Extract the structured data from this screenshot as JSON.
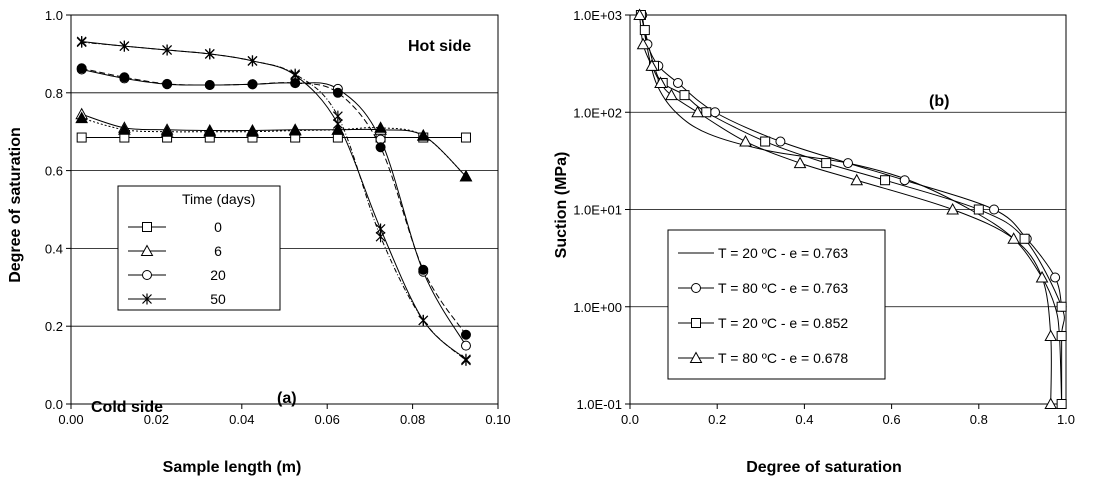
{
  "chart_data": [
    {
      "type": "line",
      "panel_label": "(a)",
      "xlabel": "Sample length (m)",
      "ylabel": "Degree of saturation",
      "xlim": [
        0,
        0.1
      ],
      "ylim": [
        0,
        1.0
      ],
      "x_ticks": [
        "0.00",
        "0.02",
        "0.04",
        "0.06",
        "0.08",
        "0.10"
      ],
      "y_ticks": [
        "0.0",
        "0.2",
        "0.4",
        "0.6",
        "0.8",
        "1.0"
      ],
      "grid": "horizontal",
      "annotations": [
        "Hot side",
        "Cold side"
      ],
      "legend_title": "Time (days)",
      "legend_position": "center-left",
      "series": [
        {
          "name": "0",
          "marker": "square",
          "x": [
            0.0025,
            0.0125,
            0.0225,
            0.0325,
            0.0425,
            0.0525,
            0.0625,
            0.0725,
            0.0825,
            0.0925
          ],
          "values": [
            0.685,
            0.685,
            0.685,
            0.685,
            0.685,
            0.685,
            0.685,
            0.685,
            0.685,
            0.685
          ]
        },
        {
          "name": "6",
          "marker": "triangle",
          "x": [
            0.0025,
            0.0125,
            0.0225,
            0.0325,
            0.0425,
            0.0525,
            0.0625,
            0.0725,
            0.0825,
            0.0925
          ],
          "values": [
            0.745,
            0.71,
            0.705,
            0.703,
            0.703,
            0.705,
            0.705,
            0.705,
            0.69,
            0.585
          ]
        },
        {
          "name": "20",
          "marker": "circle",
          "x": [
            0.0025,
            0.0125,
            0.0225,
            0.0325,
            0.0425,
            0.0525,
            0.0625,
            0.0725,
            0.0825,
            0.0925
          ],
          "values": [
            0.86,
            0.837,
            0.822,
            0.82,
            0.822,
            0.825,
            0.81,
            0.68,
            0.34,
            0.15
          ]
        },
        {
          "name": "50",
          "marker": "star",
          "x": [
            0.0025,
            0.0125,
            0.0225,
            0.0325,
            0.0425,
            0.0525,
            0.0625,
            0.0725,
            0.0825,
            0.0925
          ],
          "values": [
            0.932,
            0.92,
            0.91,
            0.9,
            0.882,
            0.845,
            0.72,
            0.45,
            0.215,
            0.115
          ]
        }
      ],
      "comparison_series": [
        {
          "marker": "filled-triangle",
          "x": [
            0.0025,
            0.0125,
            0.0225,
            0.0325,
            0.0425,
            0.0525,
            0.0625,
            0.0725,
            0.0825,
            0.0925
          ],
          "values": [
            0.735,
            0.705,
            0.7,
            0.7,
            0.7,
            0.703,
            0.705,
            0.71,
            0.69,
            0.585
          ]
        },
        {
          "marker": "filled-circle",
          "x": [
            0.0025,
            0.0125,
            0.0225,
            0.0325,
            0.0425,
            0.0525,
            0.0625,
            0.0725,
            0.0825,
            0.0925
          ],
          "values": [
            0.863,
            0.84,
            0.823,
            0.82,
            0.822,
            0.825,
            0.8,
            0.66,
            0.345,
            0.178
          ]
        },
        {
          "marker": "star",
          "x": [
            0.0025,
            0.0125,
            0.0225,
            0.0325,
            0.0425,
            0.0525,
            0.0625,
            0.0725,
            0.0825,
            0.0925
          ],
          "values": [
            0.93,
            0.92,
            0.91,
            0.9,
            0.882,
            0.848,
            0.74,
            0.43,
            0.215,
            0.112
          ]
        }
      ]
    },
    {
      "type": "line",
      "panel_label": "(b)",
      "xlabel": "Degree of saturation",
      "ylabel": "Suction (MPa)",
      "xlim": [
        0,
        1.0
      ],
      "ylim": [
        0.1,
        1000
      ],
      "yscale": "log",
      "x_ticks": [
        "0.0",
        "0.2",
        "0.4",
        "0.6",
        "0.8",
        "1.0"
      ],
      "y_ticks": [
        "1.0E-01",
        "1.0E+00",
        "1.0E+01",
        "1.0E+02",
        "1.0E+03"
      ],
      "grid": "horizontal",
      "legend_position": "bottom-left",
      "series": [
        {
          "name": "T = 20 ºC - e = 0.763",
          "marker": "none",
          "x": [
            0.027,
            0.038,
            0.06,
            0.105,
            0.18,
            0.32,
            0.5,
            0.64,
            0.78,
            0.88,
            0.945,
            0.975,
            0.985,
            0.99
          ],
          "values": [
            1000,
            500,
            200,
            100,
            60,
            40,
            30,
            20,
            10,
            5,
            2,
            1,
            0.5,
            0.1
          ]
        },
        {
          "name": "T = 80 ºC - e = 0.763",
          "marker": "circle",
          "x": [
            0.028,
            0.04,
            0.065,
            0.11,
            0.195,
            0.345,
            0.5,
            0.63,
            0.835,
            0.91,
            0.975,
            0.99
          ],
          "values": [
            1000,
            500,
            300,
            200,
            100,
            50,
            30,
            20,
            10,
            5,
            2,
            1
          ]
        },
        {
          "name": "T = 20 ºC - e = 0.852",
          "marker": "square",
          "x": [
            0.025,
            0.034,
            0.055,
            0.075,
            0.125,
            0.175,
            0.31,
            0.45,
            0.585,
            0.8,
            0.905,
            0.99,
            0.99,
            0.99
          ],
          "values": [
            1000,
            700,
            300,
            200,
            150,
            100,
            50,
            30,
            20,
            10,
            5,
            1,
            0.5,
            0.1
          ]
        },
        {
          "name": "T = 80 ºC - e = 0.678",
          "marker": "triangle",
          "x": [
            0.022,
            0.03,
            0.05,
            0.07,
            0.095,
            0.155,
            0.265,
            0.39,
            0.52,
            0.74,
            0.88,
            0.945,
            0.965,
            0.965
          ],
          "values": [
            1000,
            500,
            300,
            200,
            150,
            100,
            50,
            30,
            20,
            10,
            5,
            2,
            0.5,
            0.1
          ]
        }
      ]
    }
  ]
}
